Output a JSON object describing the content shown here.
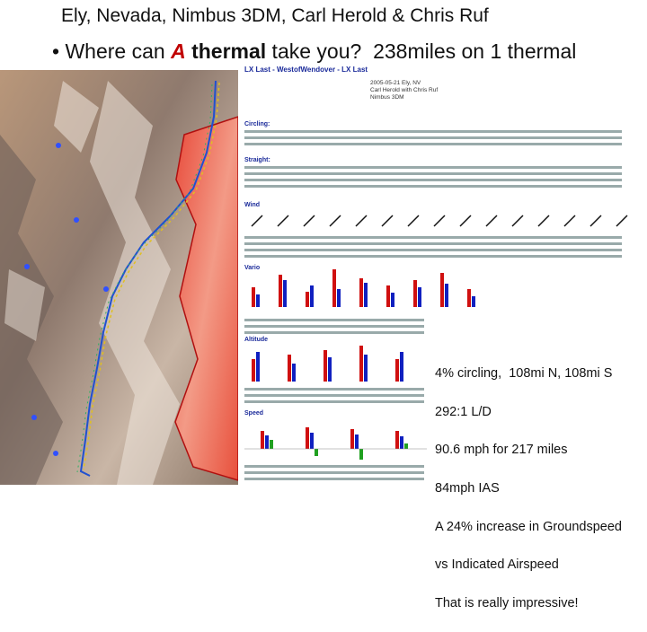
{
  "title": "Ely, Nevada, Nimbus 3DM, Carl Herold & Chris Ruf",
  "subtitle": {
    "bullet": "•",
    "before": "Where can ",
    "emphasis_a": "A",
    "emphasis_b": "thermal",
    "after": " take you?  238miles on 1 thermal"
  },
  "panel": {
    "header": "LX Last - WestofWendover - LX Last",
    "info": [
      "2005-05-21 Ely, NV",
      "Carl Herold with Chris Ruf",
      "Nimbus 3DM"
    ],
    "sections": [
      "Circling:",
      "Straight:",
      "Wind",
      "Vario",
      "Altitude",
      "Speed"
    ]
  },
  "notes": [
    "4% circling,  108mi N, 108mi S",
    "292:1 L/D",
    "90.6 mph for 217 miles",
    "84mph IAS",
    "A 24% increase in Groundspeed",
    "vs Indicated Airspeed",
    "That is really impressive!"
  ]
}
